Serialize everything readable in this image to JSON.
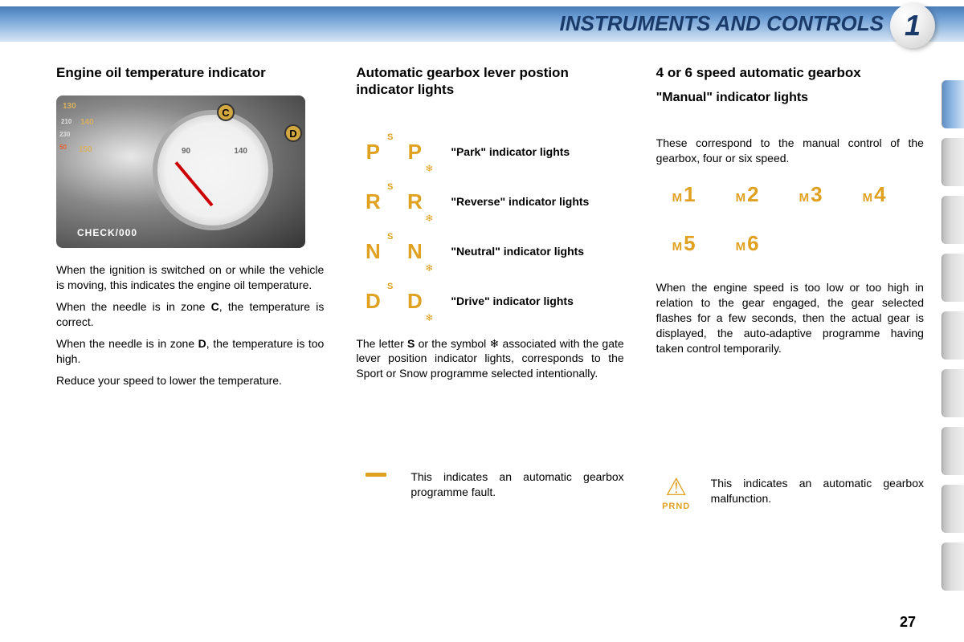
{
  "header": {
    "title": "INSTRUMENTS AND CONTROLS",
    "chapter": "1"
  },
  "page_number": "27",
  "col1": {
    "heading": "Engine oil temperature indicator",
    "gauge": {
      "marker_c": "C",
      "marker_d": "D",
      "scale_90": "90",
      "scale_140": "140",
      "check_label": "CHECK/000",
      "speedo_130": "130",
      "speedo_140": "140",
      "speedo_150": "150",
      "speedo_210": "210",
      "speedo_230": "230",
      "speedo_50": "50"
    },
    "p1": "When the ignition is switched on or while the vehicle is moving, this indicates the engine oil temperature.",
    "p2_pre": "When the needle is in zone ",
    "p2_bold": "C",
    "p2_post": ", the temperature is correct.",
    "p3_pre": "When the needle is in zone ",
    "p3_bold": "D",
    "p3_post": ", the temperature is too high.",
    "p4": "Reduce your speed to lower the temperature."
  },
  "col2": {
    "heading": "Automatic gearbox lever postion indicator lights",
    "indicators": [
      {
        "letter": "P",
        "label": "\"Park\" indicator lights"
      },
      {
        "letter": "R",
        "label": "\"Reverse\" indicator lights"
      },
      {
        "letter": "N",
        "label": "\"Neutral\" indicator lights"
      },
      {
        "letter": "D",
        "label": "\"Drive\" indicator lights"
      }
    ],
    "footnote_pre": "The letter ",
    "footnote_bold": "S",
    "footnote_post": " or the symbol ❄ associated with the gate lever position indicator lights, corresponds to the Sport or Snow programme selected intentionally.",
    "fault_text": "This indicates an automatic gearbox programme fault."
  },
  "col3": {
    "heading": "4 or 6 speed automatic gearbox",
    "sub_heading": "\"Manual\" indicator lights",
    "p1": "These correspond to the manual control of the gearbox, four or six speed.",
    "gears": [
      "1",
      "2",
      "3",
      "4",
      "5",
      "6"
    ],
    "gear_prefix": "M",
    "p2": "When the engine speed is too low or too high in relation to the gear engaged, the gear selected flashes for a few seconds, then the actual gear is displayed, the auto-adaptive programme having taken control temporarily.",
    "fault_text": "This indicates an automatic gearbox malfunction.",
    "prnd": "PRND"
  },
  "colors": {
    "amber": "#e0a020",
    "header_text": "#1a3a6a"
  }
}
